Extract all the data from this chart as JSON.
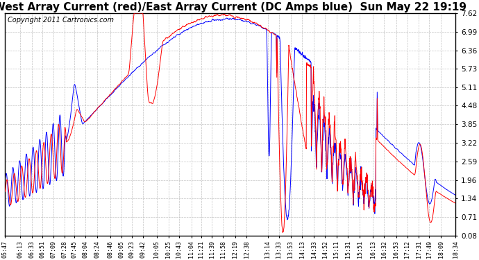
{
  "title": "West Array Current (red)/East Array Current (DC Amps blue)  Sun May 22 19:19",
  "copyright": "Copyright 2011 Cartronics.com",
  "yticks": [
    0.08,
    0.71,
    1.34,
    1.96,
    2.59,
    3.22,
    3.85,
    4.48,
    5.11,
    5.73,
    6.36,
    6.99,
    7.62
  ],
  "ylim": [
    0.08,
    7.62
  ],
  "xtick_labels": [
    "05:47",
    "06:13",
    "06:33",
    "06:51",
    "07:09",
    "07:28",
    "07:45",
    "08:04",
    "08:24",
    "08:46",
    "09:05",
    "09:23",
    "09:42",
    "10:05",
    "10:25",
    "10:43",
    "11:04",
    "11:21",
    "11:39",
    "11:58",
    "12:19",
    "12:38",
    "13:14",
    "13:33",
    "13:53",
    "14:13",
    "14:33",
    "14:52",
    "15:11",
    "15:31",
    "15:51",
    "16:13",
    "16:32",
    "16:53",
    "17:12",
    "17:31",
    "17:49",
    "18:09",
    "18:34"
  ],
  "bg_color": "#ffffff",
  "grid_color": "#bbbbbb",
  "red_color": "#ff0000",
  "blue_color": "#0000ff",
  "title_fontsize": 11,
  "copyright_fontsize": 7
}
